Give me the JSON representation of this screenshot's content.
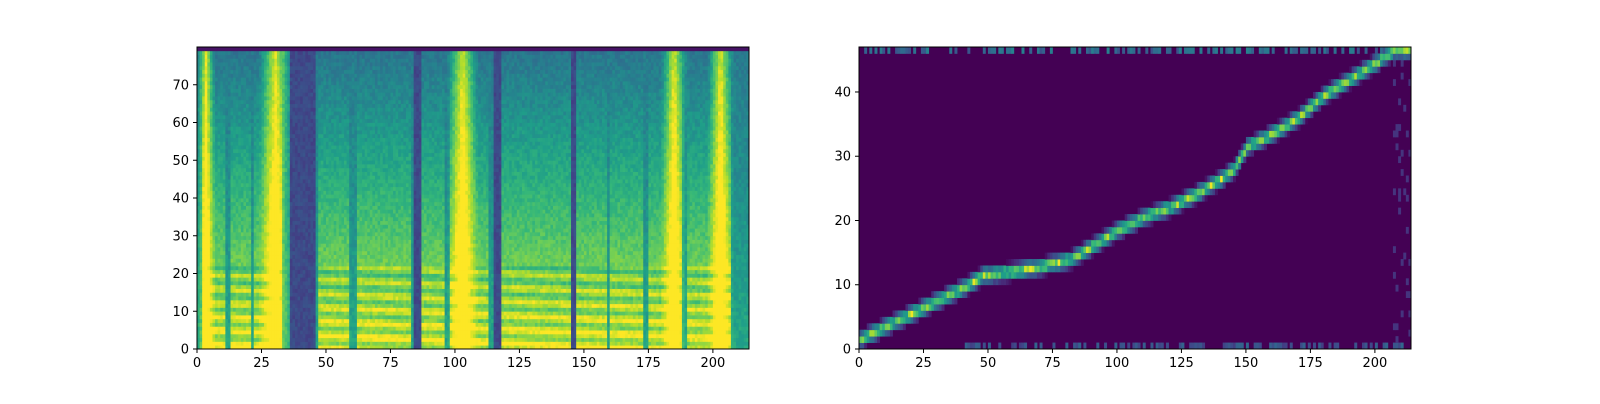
{
  "chart_data": [
    {
      "type": "heatmap",
      "name": "mel-spectrogram",
      "colormap": "viridis",
      "xlim": [
        0,
        214
      ],
      "ylim": [
        0,
        80
      ],
      "x_ticks": [
        0,
        25,
        50,
        75,
        100,
        125,
        150,
        175,
        200
      ],
      "y_ticks": [
        0,
        10,
        20,
        30,
        40,
        50,
        60,
        70
      ],
      "title": "",
      "xlabel": "",
      "ylabel": "",
      "voiced_segments": [
        [
          2,
          10
        ],
        [
          13,
          20
        ],
        [
          22,
          32
        ],
        [
          47,
          58
        ],
        [
          62,
          82
        ],
        [
          86,
          95
        ],
        [
          98,
          112
        ],
        [
          118,
          144
        ],
        [
          147,
          158
        ],
        [
          160,
          172
        ],
        [
          175,
          187
        ],
        [
          190,
          206
        ]
      ],
      "silent_columns": [
        [
          36,
          45
        ],
        [
          84,
          86
        ],
        [
          115,
          117
        ],
        [
          145,
          146
        ]
      ],
      "bright_columns": [
        [
          1,
          5
        ],
        [
          25,
          35
        ],
        [
          98,
          107
        ],
        [
          181,
          188
        ],
        [
          199,
          206
        ]
      ]
    },
    {
      "type": "heatmap",
      "name": "attention-alignment",
      "colormap": "viridis",
      "xlim": [
        0,
        214
      ],
      "ylim": [
        0,
        47
      ],
      "x_ticks": [
        0,
        25,
        50,
        75,
        100,
        125,
        150,
        175,
        200
      ],
      "y_ticks": [
        0,
        10,
        20,
        30,
        40
      ],
      "title": "",
      "xlabel": "",
      "ylabel": "",
      "alignment_path": [
        [
          0,
          1
        ],
        [
          15,
          4
        ],
        [
          30,
          7
        ],
        [
          40,
          9
        ],
        [
          48,
          11
        ],
        [
          58,
          11.5
        ],
        [
          70,
          12.3
        ],
        [
          82,
          13.5
        ],
        [
          92,
          16
        ],
        [
          100,
          18
        ],
        [
          110,
          20
        ],
        [
          120,
          21.5
        ],
        [
          130,
          23.5
        ],
        [
          140,
          26
        ],
        [
          145,
          27.5
        ],
        [
          150,
          31
        ],
        [
          160,
          33
        ],
        [
          170,
          35.5
        ],
        [
          180,
          39
        ],
        [
          190,
          41.5
        ],
        [
          200,
          44
        ],
        [
          207,
          46
        ]
      ]
    }
  ]
}
